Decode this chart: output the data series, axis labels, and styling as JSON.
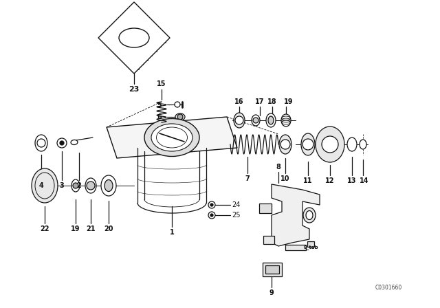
{
  "bg_color": "#ffffff",
  "line_color": "#111111",
  "watermark": "C0301660",
  "fig_w": 6.4,
  "fig_h": 4.48,
  "dpi": 100
}
